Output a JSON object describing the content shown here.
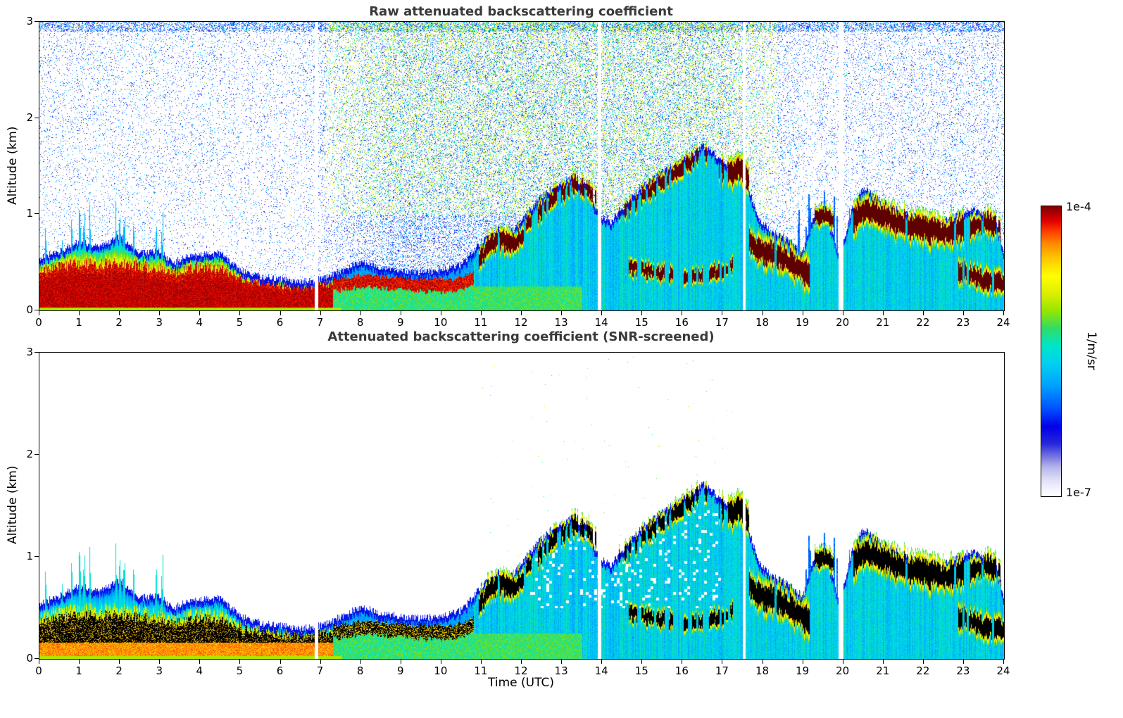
{
  "chart_data": {
    "type": "heatmap",
    "x": {
      "label": "Time (UTC)",
      "range": [
        0,
        24
      ],
      "tick_labels": [
        "0",
        "1",
        "2",
        "3",
        "4",
        "5",
        "6",
        "7",
        "8",
        "9",
        "10",
        "11",
        "12",
        "13",
        "14",
        "15",
        "16",
        "17",
        "18",
        "19",
        "20",
        "21",
        "22",
        "23",
        "24"
      ]
    },
    "y": {
      "label": "Altitude (km)",
      "range": [
        0,
        3
      ],
      "tick_labels": [
        "0",
        "1",
        "2",
        "3"
      ]
    },
    "panels": [
      {
        "title": "Raw attenuated backscattering coefficient",
        "ylabel": "Altitude (km)",
        "screened": false
      },
      {
        "title": "Attenuated backscattering coefficient (SNR-screened)",
        "ylabel": "Altitude (km)",
        "screened": true
      }
    ],
    "colorbar": {
      "max_label": "1e-4",
      "min_label": "1e-7",
      "unit": "1/m/sr",
      "scale": "log",
      "colormap": [
        {
          "pos": 0.0,
          "color": "#ffffff"
        },
        {
          "pos": 0.03,
          "color": "#f0f0ff"
        },
        {
          "pos": 0.06,
          "color": "#dcdcf5"
        },
        {
          "pos": 0.1,
          "color": "#b4b4ec"
        },
        {
          "pos": 0.14,
          "color": "#6e6ee0"
        },
        {
          "pos": 0.18,
          "color": "#2828dc"
        },
        {
          "pos": 0.24,
          "color": "#0000e6"
        },
        {
          "pos": 0.3,
          "color": "#0050ff"
        },
        {
          "pos": 0.38,
          "color": "#00a0ff"
        },
        {
          "pos": 0.46,
          "color": "#00d2f0"
        },
        {
          "pos": 0.52,
          "color": "#00e6c8"
        },
        {
          "pos": 0.58,
          "color": "#32dc64"
        },
        {
          "pos": 0.64,
          "color": "#96e600"
        },
        {
          "pos": 0.7,
          "color": "#dcf000"
        },
        {
          "pos": 0.76,
          "color": "#ffff00"
        },
        {
          "pos": 0.82,
          "color": "#ffc800"
        },
        {
          "pos": 0.87,
          "color": "#ff8c00"
        },
        {
          "pos": 0.91,
          "color": "#ff4600"
        },
        {
          "pos": 0.95,
          "color": "#e10000"
        },
        {
          "pos": 1.0,
          "color": "#7f0000"
        }
      ],
      "over_color_raw": "#5f0000",
      "over_color_screened": "#000000"
    },
    "features": {
      "surface_layer_end_utc": 7.3,
      "elevated_layer_end_utc": 10.8,
      "daytime_noise_utc": [
        6.5,
        19.0
      ],
      "mixed_layer_top_km": [
        [
          0,
          0.55
        ],
        [
          0.5,
          0.62
        ],
        [
          1,
          0.72
        ],
        [
          1.5,
          0.66
        ],
        [
          2,
          0.78
        ],
        [
          2.5,
          0.6
        ],
        [
          3,
          0.62
        ],
        [
          3.3,
          0.5
        ],
        [
          3.6,
          0.55
        ],
        [
          4,
          0.58
        ],
        [
          4.5,
          0.6
        ],
        [
          5,
          0.42
        ],
        [
          5.5,
          0.36
        ],
        [
          6,
          0.33
        ],
        [
          6.5,
          0.3
        ],
        [
          7,
          0.33
        ],
        [
          7.5,
          0.42
        ],
        [
          8,
          0.52
        ],
        [
          8.5,
          0.45
        ],
        [
          9,
          0.42
        ],
        [
          9.5,
          0.4
        ],
        [
          10,
          0.42
        ],
        [
          10.5,
          0.48
        ],
        [
          11,
          0.72
        ],
        [
          11.4,
          0.85
        ],
        [
          11.7,
          0.8
        ],
        [
          12,
          0.95
        ],
        [
          12.4,
          1.15
        ],
        [
          12.8,
          1.3
        ],
        [
          13.2,
          1.38
        ],
        [
          13.6,
          1.3
        ],
        [
          13.9,
          1.0
        ],
        [
          14.2,
          0.92
        ],
        [
          14.6,
          1.12
        ],
        [
          15,
          1.3
        ],
        [
          15.4,
          1.42
        ],
        [
          15.8,
          1.52
        ],
        [
          16.2,
          1.62
        ],
        [
          16.5,
          1.72
        ],
        [
          16.8,
          1.62
        ],
        [
          17.1,
          1.52
        ],
        [
          17.4,
          1.47
        ],
        [
          17.6,
          1.32
        ],
        [
          17.9,
          0.95
        ],
        [
          18.2,
          0.82
        ],
        [
          18.6,
          0.74
        ],
        [
          19,
          0.62
        ],
        [
          19.3,
          1.05
        ],
        [
          19.6,
          1.0
        ],
        [
          19.9,
          0.52
        ],
        [
          20.2,
          1.05
        ],
        [
          20.5,
          1.28
        ],
        [
          20.8,
          1.18
        ],
        [
          21.2,
          1.08
        ],
        [
          21.6,
          1.0
        ],
        [
          22,
          0.96
        ],
        [
          22.4,
          0.9
        ],
        [
          22.8,
          1.0
        ],
        [
          23.2,
          1.06
        ],
        [
          23.5,
          1.0
        ],
        [
          23.8,
          0.92
        ],
        [
          24,
          0.6
        ]
      ],
      "surface_layer_top_km": [
        [
          0,
          0.42
        ],
        [
          0.5,
          0.46
        ],
        [
          1,
          0.5
        ],
        [
          1.5,
          0.48
        ],
        [
          2,
          0.5
        ],
        [
          2.5,
          0.46
        ],
        [
          3,
          0.44
        ],
        [
          3.5,
          0.4
        ],
        [
          4,
          0.46
        ],
        [
          4.5,
          0.42
        ],
        [
          5,
          0.34
        ],
        [
          5.5,
          0.3
        ],
        [
          6,
          0.28
        ],
        [
          6.5,
          0.26
        ],
        [
          7,
          0.3
        ],
        [
          7.3,
          0.28
        ]
      ],
      "elevated_layer_center_km": [
        [
          7.3,
          0.27
        ],
        [
          8,
          0.31
        ],
        [
          8.7,
          0.29
        ],
        [
          9.5,
          0.27
        ],
        [
          10.2,
          0.26
        ],
        [
          10.8,
          0.33
        ]
      ],
      "plume_spikes": [
        {
          "t": 0.15,
          "top_km": 0.8
        },
        {
          "t": 0.55,
          "top_km": 0.7
        },
        {
          "t": 0.8,
          "top_km": 0.9
        },
        {
          "t": 1.0,
          "top_km": 1.05
        },
        {
          "t": 1.1,
          "top_km": 0.95
        },
        {
          "t": 1.25,
          "top_km": 1.0
        },
        {
          "t": 1.5,
          "top_km": 0.7
        },
        {
          "t": 1.9,
          "top_km": 1.1
        },
        {
          "t": 2.0,
          "top_km": 0.95
        },
        {
          "t": 2.1,
          "top_km": 0.9
        },
        {
          "t": 2.35,
          "top_km": 0.75
        },
        {
          "t": 2.9,
          "top_km": 0.95
        },
        {
          "t": 3.05,
          "top_km": 0.85
        },
        {
          "t": 4.4,
          "top_km": 0.6
        }
      ],
      "cloud_layers": [
        {
          "t_start": 10.9,
          "t_end": 12.05,
          "path": [
            [
              10.9,
              0.5
            ],
            [
              11.2,
              0.68
            ],
            [
              11.5,
              0.74
            ],
            [
              11.8,
              0.68
            ],
            [
              12.05,
              0.82
            ]
          ],
          "half_width_km": 0.07,
          "gap_fraction": 0.05
        },
        {
          "t_start": 12.1,
          "t_end": 13.85,
          "path": [
            [
              12.1,
              0.88
            ],
            [
              12.5,
              1.05
            ],
            [
              12.9,
              1.2
            ],
            [
              13.3,
              1.32
            ],
            [
              13.6,
              1.28
            ],
            [
              13.85,
              1.18
            ]
          ],
          "half_width_km": 0.06,
          "gap_fraction": 0.3
        },
        {
          "t_start": 14.4,
          "t_end": 16.65,
          "path": [
            [
              14.4,
              1.0
            ],
            [
              14.8,
              1.12
            ],
            [
              15.2,
              1.27
            ],
            [
              15.6,
              1.38
            ],
            [
              16.0,
              1.48
            ],
            [
              16.3,
              1.58
            ],
            [
              16.65,
              1.65
            ]
          ],
          "half_width_km": 0.06,
          "gap_fraction": 0.35
        },
        {
          "t_start": 16.9,
          "t_end": 17.65,
          "path": [
            [
              16.9,
              1.48
            ],
            [
              17.2,
              1.42
            ],
            [
              17.45,
              1.5
            ],
            [
              17.65,
              1.35
            ]
          ],
          "half_width_km": 0.08,
          "gap_fraction": 0.15
        },
        {
          "t_start": 17.65,
          "t_end": 19.15,
          "path": [
            [
              17.65,
              0.72
            ],
            [
              17.9,
              0.62
            ],
            [
              18.3,
              0.58
            ],
            [
              18.7,
              0.5
            ],
            [
              19.15,
              0.36
            ]
          ],
          "half_width_km": 0.09,
          "gap_fraction": 0.05
        },
        {
          "t_start": 19.25,
          "t_end": 19.75,
          "path": [
            [
              19.25,
              0.95
            ],
            [
              19.5,
              1.0
            ],
            [
              19.75,
              0.9
            ]
          ],
          "half_width_km": 0.06,
          "gap_fraction": 0.1
        },
        {
          "t_start": 20.25,
          "t_end": 23.0,
          "path": [
            [
              20.25,
              0.95
            ],
            [
              20.5,
              1.05
            ],
            [
              20.9,
              1.0
            ],
            [
              21.3,
              0.92
            ],
            [
              21.7,
              0.88
            ],
            [
              22.1,
              0.85
            ],
            [
              22.5,
              0.8
            ],
            [
              22.8,
              0.85
            ],
            [
              23.0,
              0.88
            ]
          ],
          "half_width_km": 0.09,
          "gap_fraction": 0.05
        },
        {
          "t_start": 22.85,
          "t_end": 24,
          "path": [
            [
              22.85,
              0.42
            ],
            [
              23.2,
              0.36
            ],
            [
              23.6,
              0.3
            ],
            [
              24,
              0.28
            ]
          ],
          "half_width_km": 0.07,
          "gap_fraction": 0.1
        },
        {
          "t_start": 23.15,
          "t_end": 23.9,
          "path": [
            [
              23.15,
              0.85
            ],
            [
              23.5,
              0.92
            ],
            [
              23.9,
              0.86
            ]
          ],
          "half_width_km": 0.07,
          "gap_fraction": 0.15
        },
        {
          "t_start": 14.45,
          "t_end": 17.25,
          "path": [
            [
              14.45,
              0.5
            ],
            [
              15,
              0.42
            ],
            [
              15.5,
              0.38
            ],
            [
              16,
              0.35
            ],
            [
              16.5,
              0.38
            ],
            [
              17,
              0.42
            ],
            [
              17.25,
              0.48
            ]
          ],
          "half_width_km": 0.05,
          "gap_fraction": 0.45
        }
      ],
      "data_gaps_utc": [
        [
          6.84,
          6.92
        ],
        [
          13.88,
          13.97
        ],
        [
          17.5,
          17.56
        ],
        [
          19.88,
          19.99
        ]
      ],
      "precip_streaks_utc": {
        "raw": [
          18.85,
          20.15
        ],
        "screened": [
          19.0,
          20.15
        ]
      }
    }
  }
}
